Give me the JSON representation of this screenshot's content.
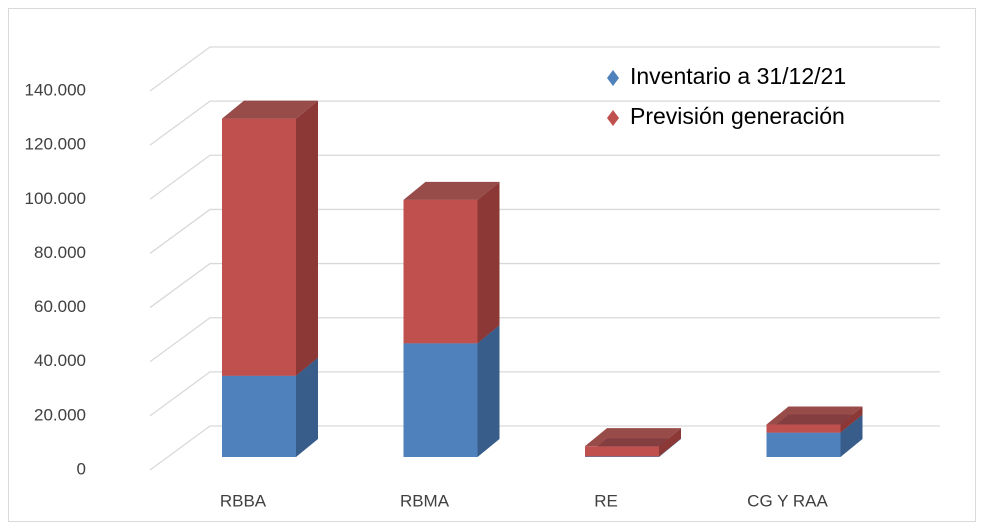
{
  "chart_data": {
    "type": "bar3d_stacked",
    "categories": [
      "RBBA",
      "RBMA",
      "RE",
      "CG Y RAA"
    ],
    "series": [
      {
        "name": "Inventario a 31/12/21",
        "color": "#4f81bd",
        "side": "#385d8a",
        "values": [
          30000,
          42000,
          200,
          9000
        ]
      },
      {
        "name": "Previsión generación",
        "color": "#c0504d",
        "side": "#8c3836",
        "values": [
          95000,
          53000,
          3800,
          3000
        ]
      }
    ],
    "ylim": [
      0,
      140000
    ],
    "yticks": [
      0,
      {
        "value": 20000,
        "label": "20.000"
      },
      {
        "value": 40000,
        "label": "40.000"
      },
      {
        "value": 60000,
        "label": "60.000"
      },
      {
        "value": 80000,
        "label": "80.000"
      },
      {
        "value": 100000,
        "label": "100.000"
      },
      {
        "value": 120000,
        "label": "120.000"
      },
      {
        "value": 140000,
        "label": "140.000"
      }
    ],
    "grid": true
  }
}
